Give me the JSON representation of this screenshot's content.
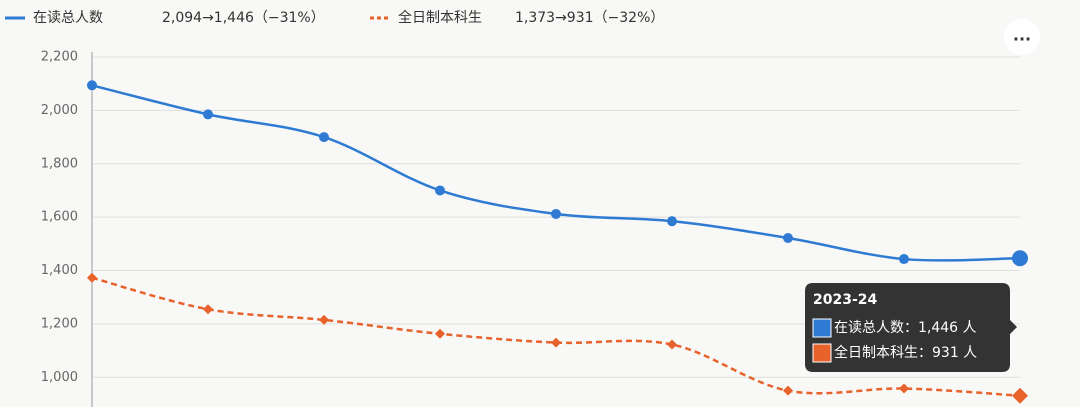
{
  "chart_data": {
    "type": "line",
    "categories": [
      null,
      null,
      null,
      null,
      null,
      null,
      null,
      null,
      "2023-24"
    ],
    "series": [
      {
        "name": "在读总人数",
        "summary": "2,094→1,446（−31%）",
        "color": "#2f7bd4",
        "dashed": false,
        "values": [
          2094,
          1985,
          1900,
          1700,
          1612,
          1585,
          1522,
          1443,
          1446
        ]
      },
      {
        "name": "全日制本科生",
        "summary": "1,373→931（−32%）",
        "color": "#e8622c",
        "dashed": true,
        "values": [
          1373,
          1255,
          1215,
          1163,
          1130,
          1123,
          950,
          958,
          931
        ]
      }
    ],
    "ylim": [
      900,
      2200
    ],
    "yticks": [
      {
        "value": 1000,
        "label": "1,000"
      },
      {
        "value": 1200,
        "label": "1,200"
      },
      {
        "value": 1400,
        "label": "1,400"
      },
      {
        "value": 1600,
        "label": "1,600"
      },
      {
        "value": 1800,
        "label": "1,800"
      },
      {
        "value": 2000,
        "label": "2,000"
      },
      {
        "value": 2200,
        "label": "2,200"
      }
    ],
    "grid": true,
    "tooltip": {
      "lines": [
        "在读总人数：1,446 人",
        "全日制本科生：931 人"
      ]
    },
    "menu": "..."
  }
}
